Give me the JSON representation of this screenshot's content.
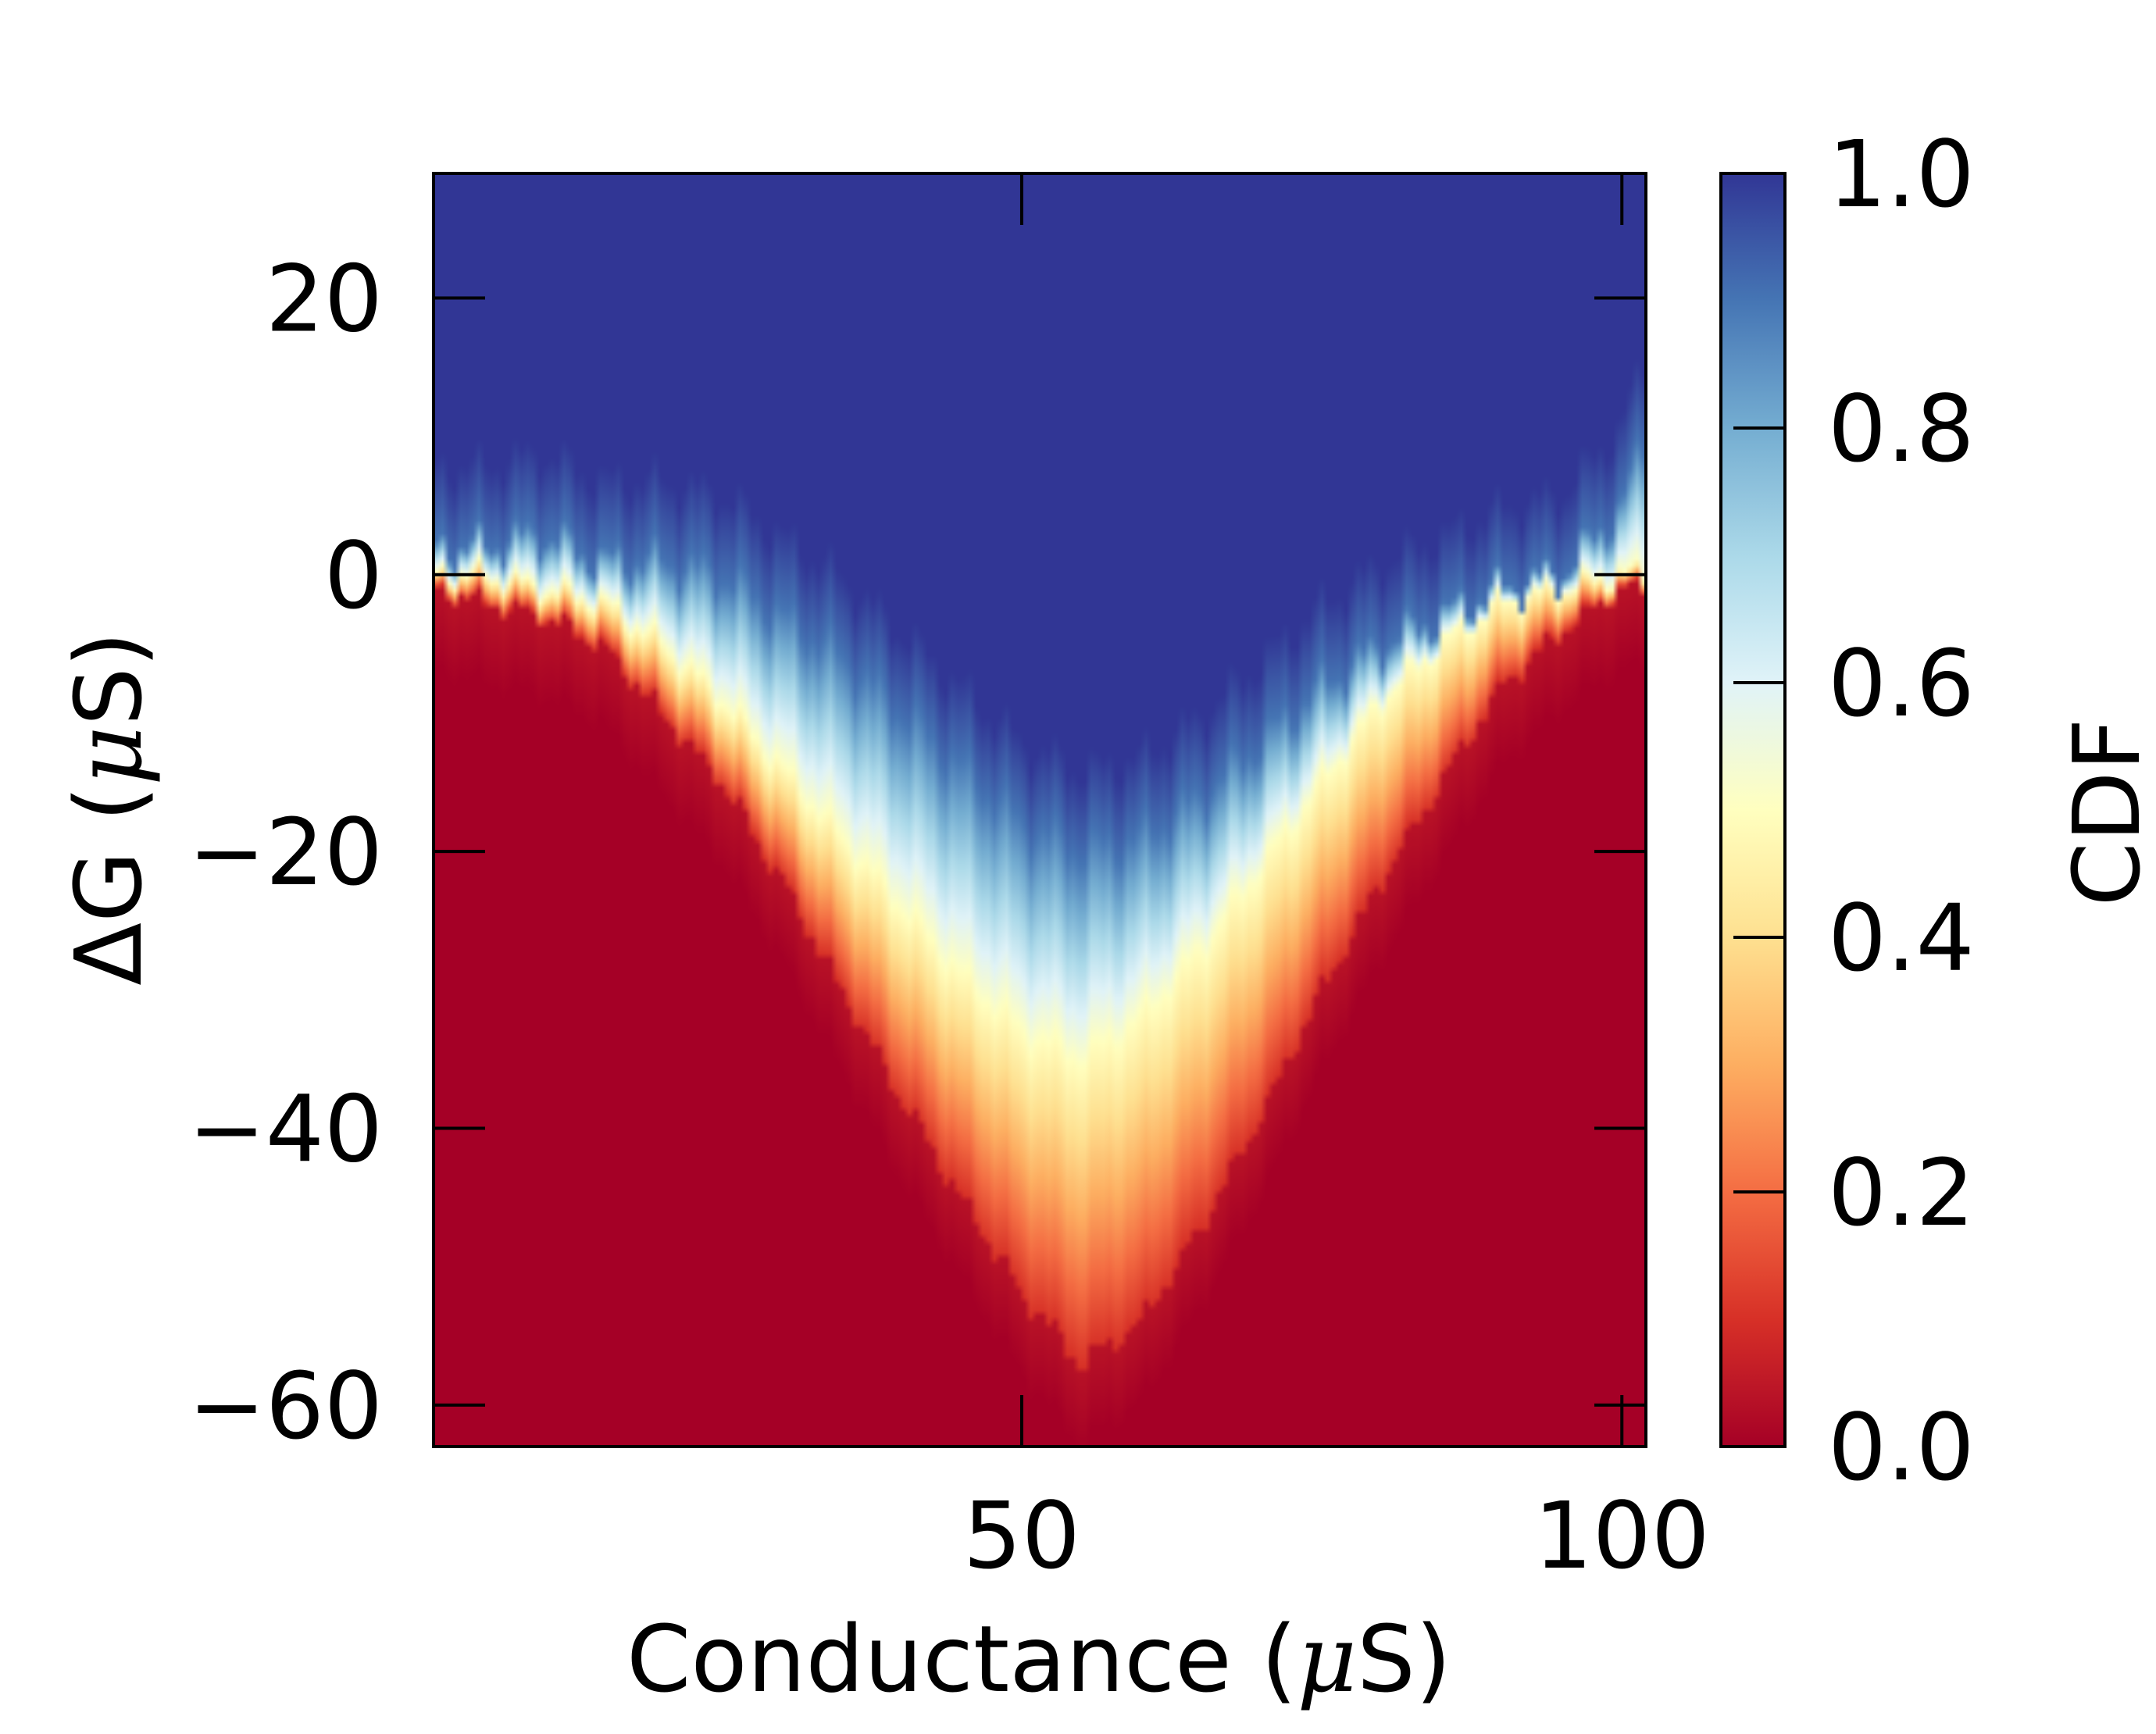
{
  "chart_data": {
    "type": "heatmap",
    "title": "",
    "xlabel": {
      "pre": "Conductance (",
      "mu": "μ",
      "post": "S)"
    },
    "ylabel": {
      "pre": "ΔG (",
      "mu": "μ",
      "post": "S)"
    },
    "xlim": [
      1,
      102
    ],
    "ylim": [
      -63,
      29
    ],
    "xticks": [
      {
        "value": 50,
        "label": "50"
      },
      {
        "value": 100,
        "label": "100"
      }
    ],
    "yticks": [
      {
        "value": 20,
        "label": "20"
      },
      {
        "value": 0,
        "label": "0"
      },
      {
        "value": -20,
        "label": "−20"
      },
      {
        "value": -40,
        "label": "−40"
      },
      {
        "value": -60,
        "label": "−60"
      }
    ],
    "colorbar": {
      "label": "CDF",
      "colormap": "RdYlBu",
      "range": [
        0,
        1
      ],
      "ticks": [
        {
          "value": 0.0,
          "label": "0.0"
        },
        {
          "value": 0.2,
          "label": "0.2"
        },
        {
          "value": 0.4,
          "label": "0.4"
        },
        {
          "value": 0.6,
          "label": "0.6"
        },
        {
          "value": 0.8,
          "label": "0.8"
        },
        {
          "value": 1.0,
          "label": "1.0"
        }
      ]
    },
    "description_of_field": "CDF of ΔG at each conductance; transition band is a V shape near ΔG≈0 at both conductance ends and deepest near 55 μS",
    "profile": {
      "conductance": [
        1,
        5,
        10,
        15,
        20,
        25,
        30,
        35,
        40,
        45,
        50,
        55,
        60,
        65,
        70,
        75,
        80,
        85,
        90,
        95,
        100,
        102
      ],
      "dG_cdf_0_1": [
        -1,
        -2,
        -3,
        -5,
        -10,
        -15,
        -22,
        -30,
        -38,
        -45,
        -52,
        -57,
        -54,
        -47,
        -39,
        -30,
        -22,
        -15,
        -8,
        -4,
        -1,
        -1
      ],
      "dG_cdf_0_5": [
        0,
        0,
        -1,
        -2,
        -5,
        -9,
        -14,
        -19,
        -24,
        -29,
        -33,
        -35,
        -32,
        -27,
        -21,
        -15,
        -9,
        -5,
        -2,
        -1,
        0,
        0
      ],
      "dG_cdf_0_9": [
        2,
        2,
        3,
        1,
        1,
        0,
        -3,
        -6,
        -10,
        -14,
        -18,
        -20,
        -19,
        -16,
        -12,
        -8,
        -5,
        -3,
        -1,
        0,
        5,
        10
      ]
    }
  }
}
